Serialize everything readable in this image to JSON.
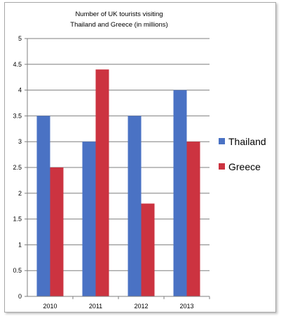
{
  "chart_data": {
    "type": "bar",
    "title_line1": "Number of UK tourists visiting",
    "title_line2": "Thailand and Greece (in millions)",
    "categories": [
      "2010",
      "2011",
      "2012",
      "2013"
    ],
    "series": [
      {
        "name": "Thailand",
        "color": "#4a72c4",
        "values": [
          3.5,
          3.0,
          3.5,
          4.0
        ]
      },
      {
        "name": "Greece",
        "color": "#cc3340",
        "values": [
          2.5,
          4.4,
          1.8,
          3.0
        ]
      }
    ],
    "ylim": [
      0,
      5
    ],
    "yticks": [
      0,
      0.5,
      1,
      1.5,
      2,
      2.5,
      3,
      3.5,
      4,
      4.5,
      5
    ],
    "ytick_labels": [
      "0",
      "0.5",
      "1",
      "1.5",
      "2",
      "2.5",
      "3",
      "3.5",
      "4",
      "4.5",
      "5"
    ],
    "grid": true,
    "legend_position": "right"
  }
}
